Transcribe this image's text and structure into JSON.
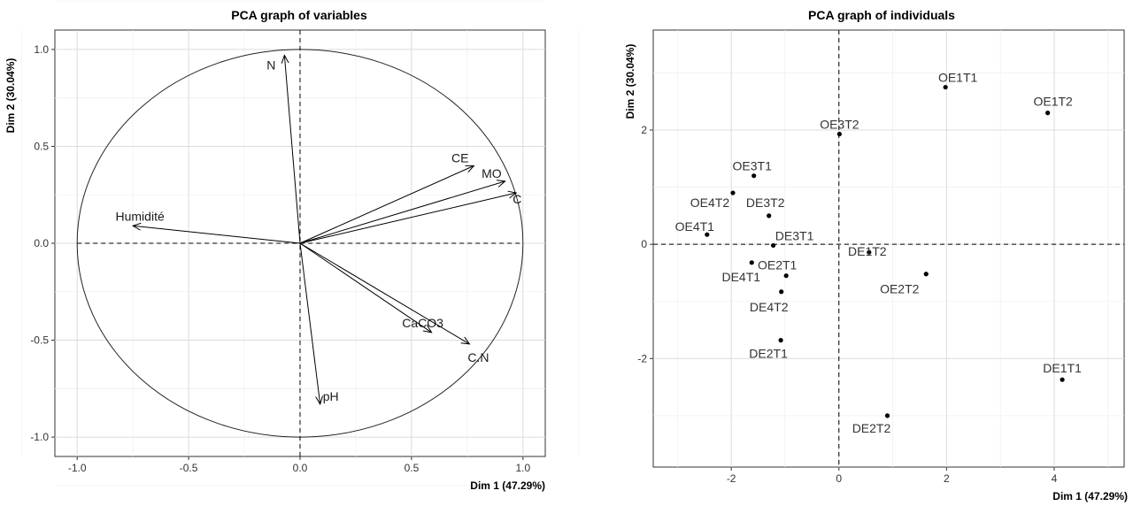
{
  "chart_data": [
    {
      "type": "scatter",
      "title": "PCA graph of variables",
      "xlabel": "Dim 1 (47.29%)",
      "ylabel": "Dim 2 (30.04%)",
      "xlim": [
        -1.1,
        1.1
      ],
      "ylim": [
        -1.1,
        1.1
      ],
      "xticks": [
        {
          "v": -1.0,
          "label": "-1.0"
        },
        {
          "v": -0.5,
          "label": "-0.5"
        },
        {
          "v": 0.0,
          "label": "0.0"
        },
        {
          "v": 0.5,
          "label": "0.5"
        },
        {
          "v": 1.0,
          "label": "1.0"
        }
      ],
      "yticks": [
        {
          "v": -1.0,
          "label": "-1.0"
        },
        {
          "v": -0.5,
          "label": "-0.5"
        },
        {
          "v": 0.0,
          "label": "0.0"
        },
        {
          "v": 0.5,
          "label": "0.5"
        },
        {
          "v": 1.0,
          "label": "1.0"
        }
      ],
      "grid": true,
      "correlation_circle": true,
      "vectors": [
        {
          "label": "N",
          "x": -0.07,
          "y": 0.97
        },
        {
          "label": "CE",
          "x": 0.78,
          "y": 0.4
        },
        {
          "label": "MO",
          "x": 0.92,
          "y": 0.32
        },
        {
          "label": "C",
          "x": 0.97,
          "y": 0.26
        },
        {
          "label": "Humidité",
          "x": -0.75,
          "y": 0.09
        },
        {
          "label": "CaCO3",
          "x": 0.59,
          "y": -0.46
        },
        {
          "label": "C.N",
          "x": 0.76,
          "y": -0.52
        },
        {
          "label": "pH",
          "x": 0.09,
          "y": -0.83
        }
      ]
    },
    {
      "type": "scatter",
      "title": "PCA graph of individuals",
      "xlabel": "Dim 1 (47.29%)",
      "ylabel": "Dim 2 (30.04%)",
      "xlim": [
        -3.45,
        5.3
      ],
      "ylim": [
        -3.9,
        3.75
      ],
      "xticks": [
        {
          "v": -2,
          "label": "-2"
        },
        {
          "v": 0,
          "label": "0"
        },
        {
          "v": 2,
          "label": "2"
        },
        {
          "v": 4,
          "label": "4"
        }
      ],
      "yticks": [
        {
          "v": -2,
          "label": "-2"
        },
        {
          "v": 0,
          "label": "0"
        },
        {
          "v": 2,
          "label": "2"
        }
      ],
      "grid": true,
      "points": [
        {
          "label": "OE1T1",
          "x": 1.98,
          "y": 2.75
        },
        {
          "label": "OE1T2",
          "x": 3.88,
          "y": 2.3
        },
        {
          "label": "OE3T2",
          "x": 0.01,
          "y": 1.93
        },
        {
          "label": "OE3T1",
          "x": -1.58,
          "y": 1.2
        },
        {
          "label": "OE4T2",
          "x": -1.97,
          "y": 0.9
        },
        {
          "label": "DE3T2",
          "x": -1.3,
          "y": 0.5
        },
        {
          "label": "OE4T1",
          "x": -2.45,
          "y": 0.17
        },
        {
          "label": "DE3T1",
          "x": -1.22,
          "y": -0.02
        },
        {
          "label": "DE1T2",
          "x": 0.56,
          "y": -0.14
        },
        {
          "label": "DE4T1",
          "x": -1.62,
          "y": -0.32
        },
        {
          "label": "OE2T1",
          "x": -0.98,
          "y": -0.55
        },
        {
          "label": "OE2T2",
          "x": 1.62,
          "y": -0.52
        },
        {
          "label": "DE4T2",
          "x": -1.07,
          "y": -0.83
        },
        {
          "label": "DE2T1",
          "x": -1.08,
          "y": -1.68
        },
        {
          "label": "DE1T1",
          "x": 4.15,
          "y": -2.37
        },
        {
          "label": "DE2T2",
          "x": 0.9,
          "y": -3.0
        }
      ]
    }
  ]
}
